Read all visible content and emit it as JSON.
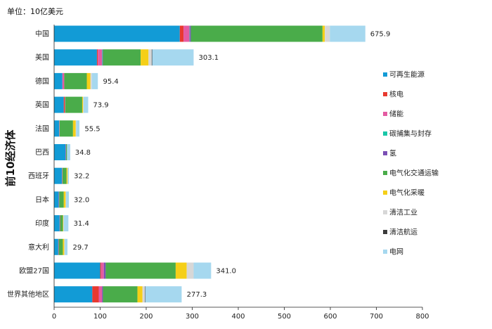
{
  "unit_text": "单位：10亿美元",
  "chart_data": {
    "type": "bar",
    "orientation": "horizontal",
    "stacked": true,
    "ylabel": "前10经济体",
    "xlim": [
      0,
      800
    ],
    "xticks": [
      0,
      100,
      200,
      300,
      400,
      500,
      600,
      700,
      800
    ],
    "grid": false,
    "legend_position": "right",
    "categories": [
      "中国",
      "美国",
      "德国",
      "英国",
      "法国",
      "巴西",
      "西班牙",
      "日本",
      "印度",
      "意大利",
      "欧盟27国",
      "世界其他地区"
    ],
    "totals": [
      675.9,
      303.1,
      95.4,
      73.9,
      55.5,
      34.8,
      32.2,
      32.0,
      31.4,
      29.7,
      341.0,
      277.3
    ],
    "total_labels": [
      "675.9",
      "303.1",
      "95.4",
      "73.9",
      "55.5",
      "34.8",
      "32.2",
      "32.0",
      "31.4",
      "29.7",
      "341.0",
      "277.3"
    ],
    "series": [
      {
        "name": "可再生能源",
        "color": "#129bd6",
        "values": [
          273,
          93,
          18,
          21,
          11,
          25,
          17,
          10,
          12,
          9,
          100,
          83
        ]
      },
      {
        "name": "核电",
        "color": "#e8392f",
        "values": [
          8,
          2,
          0,
          2,
          0,
          0,
          0,
          0,
          0,
          0,
          2,
          14
        ]
      },
      {
        "name": "储能",
        "color": "#e45ba2",
        "values": [
          13,
          9,
          4,
          1,
          1,
          1,
          1,
          1,
          1,
          1,
          6,
          7
        ]
      },
      {
        "name": "碳捕集与封存",
        "color": "#19c7a8",
        "values": [
          1,
          1,
          0,
          0,
          0,
          0,
          0,
          0,
          0,
          0,
          0,
          0
        ]
      },
      {
        "name": "氢",
        "color": "#7b4fb5",
        "values": [
          2,
          1,
          0,
          0,
          0,
          0,
          0,
          0,
          0,
          0,
          4,
          2
        ]
      },
      {
        "name": "电气化交通运输",
        "color": "#4aac4a",
        "values": [
          286,
          82,
          49,
          37,
          29,
          2,
          9,
          10,
          6,
          9,
          152,
          75
        ]
      },
      {
        "name": "电气化采暖",
        "color": "#f5cf18",
        "values": [
          5,
          17,
          8,
          2,
          6,
          0,
          2,
          4,
          1,
          3,
          24,
          11
        ]
      },
      {
        "name": "清洁工业",
        "color": "#d7d7d7",
        "values": [
          11,
          7,
          3,
          1,
          1,
          0,
          1,
          1,
          1,
          1,
          15,
          5
        ]
      },
      {
        "name": "清洁航运",
        "color": "#3b3b3b",
        "values": [
          0,
          1,
          0,
          0,
          0,
          0,
          0,
          0,
          0,
          0,
          0,
          1
        ]
      },
      {
        "name": "电网",
        "color": "#a6d8ef",
        "values": [
          77,
          90,
          13,
          10,
          7,
          7,
          2,
          6,
          10,
          6,
          38,
          79
        ]
      }
    ]
  }
}
